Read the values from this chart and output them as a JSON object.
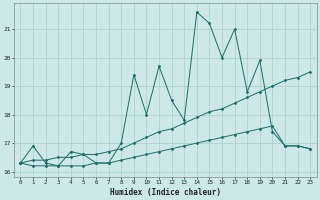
{
  "xlabel": "Humidex (Indice chaleur)",
  "background_color": "#cce8e8",
  "grid_color": "#aacece",
  "line_color": "#1a6b6b",
  "xlim": [
    -0.5,
    23.5
  ],
  "ylim": [
    15.8,
    21.9
  ],
  "yticks": [
    16,
    17,
    18,
    19,
    20,
    21
  ],
  "xticks": [
    0,
    1,
    2,
    3,
    4,
    5,
    6,
    7,
    8,
    9,
    10,
    11,
    12,
    13,
    14,
    15,
    16,
    17,
    18,
    19,
    20,
    21,
    22,
    23
  ],
  "series1": [
    16.3,
    16.9,
    16.3,
    16.2,
    16.7,
    16.6,
    16.3,
    16.3,
    17.0,
    19.4,
    18.0,
    19.7,
    18.5,
    17.8,
    21.6,
    21.2,
    20.0,
    21.0,
    18.8,
    19.9,
    17.4,
    16.9,
    16.9,
    16.8
  ],
  "series2": [
    16.3,
    16.4,
    16.4,
    16.5,
    16.5,
    16.6,
    16.6,
    16.7,
    16.8,
    17.0,
    17.2,
    17.4,
    17.5,
    17.7,
    17.9,
    18.1,
    18.2,
    18.4,
    18.6,
    18.8,
    19.0,
    19.2,
    19.3,
    19.5
  ],
  "series3": [
    16.3,
    16.2,
    16.2,
    16.2,
    16.2,
    16.2,
    16.3,
    16.3,
    16.4,
    16.5,
    16.6,
    16.7,
    16.8,
    16.9,
    17.0,
    17.1,
    17.2,
    17.3,
    17.4,
    17.5,
    17.6,
    16.9,
    16.9,
    16.8
  ]
}
